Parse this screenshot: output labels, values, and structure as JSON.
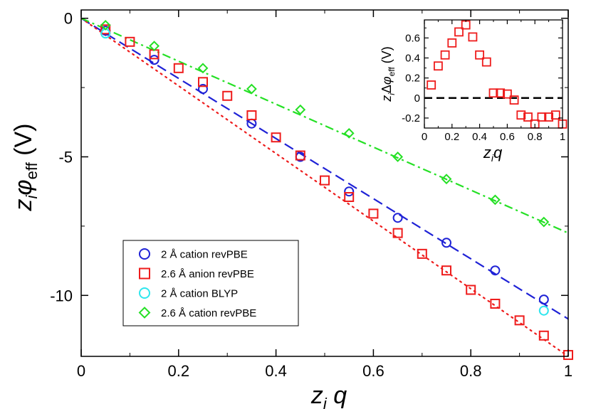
{
  "chart_data": [
    {
      "type": "scatter",
      "panel": "main",
      "xlim": [
        0,
        1
      ],
      "ylim": [
        -12.2,
        0.3
      ],
      "xticks": [
        0,
        0.2,
        0.4,
        0.6,
        0.8,
        1
      ],
      "xtick_labels": [
        "0",
        "0.2",
        "0.4",
        "0.6",
        "0.8",
        "1"
      ],
      "yticks": [
        0,
        -5,
        -10
      ],
      "ytick_labels": [
        "0",
        "-5",
        "-10"
      ],
      "xlabel": {
        "main": "z",
        "sub": "i",
        "tail": " q"
      },
      "ylabel": {
        "main": "z",
        "sub": "i",
        "phi": "φ",
        "phisub": "eff",
        "tail": " (V)"
      },
      "legend_position": "lower-left",
      "series": [
        {
          "name": "2 Å cation revPBE",
          "marker": "circle",
          "color": "#1f22d6",
          "x": [
            0.05,
            0.15,
            0.25,
            0.35,
            0.45,
            0.55,
            0.65,
            0.75,
            0.85,
            0.95
          ],
          "y": [
            -0.45,
            -1.5,
            -2.55,
            -3.8,
            -5.0,
            -6.25,
            -7.2,
            -8.1,
            -9.1,
            -10.15
          ]
        },
        {
          "name": "2.6 Å anion revPBE",
          "marker": "square",
          "color": "#ee1c1c",
          "x": [
            0.05,
            0.1,
            0.15,
            0.2,
            0.25,
            0.3,
            0.35,
            0.4,
            0.45,
            0.5,
            0.55,
            0.6,
            0.65,
            0.7,
            0.75,
            0.8,
            0.85,
            0.9,
            0.95,
            1.0
          ],
          "y": [
            -0.4,
            -0.85,
            -1.3,
            -1.8,
            -2.3,
            -2.8,
            -3.5,
            -4.3,
            -4.95,
            -5.85,
            -6.45,
            -7.05,
            -7.75,
            -8.5,
            -9.1,
            -9.8,
            -10.3,
            -10.9,
            -11.45,
            -12.15
          ]
        },
        {
          "name": "2 Å cation BLYP",
          "marker": "circle",
          "color": "#2ee6ee",
          "x": [
            0.05,
            0.95
          ],
          "y": [
            -0.55,
            -10.55
          ]
        },
        {
          "name": "2.6 Å cation revPBE",
          "marker": "diamond",
          "color": "#25e025",
          "x": [
            0.05,
            0.15,
            0.25,
            0.35,
            0.45,
            0.55,
            0.65,
            0.75,
            0.85,
            0.95
          ],
          "y": [
            -0.25,
            -1.0,
            -1.8,
            -2.55,
            -3.3,
            -4.15,
            -5.0,
            -5.8,
            -6.55,
            -7.35
          ]
        }
      ],
      "fits": [
        {
          "style": "dashed",
          "color": "#1f22d6",
          "x": [
            0,
            1
          ],
          "y": [
            0,
            -10.85
          ]
        },
        {
          "style": "dotted",
          "color": "#ee1c1c",
          "x": [
            0,
            1
          ],
          "y": [
            0,
            -12.2
          ]
        },
        {
          "style": "dashdot",
          "color": "#25e025",
          "x": [
            0,
            1
          ],
          "y": [
            0,
            -7.75
          ]
        }
      ]
    },
    {
      "type": "scatter",
      "panel": "inset",
      "xlim": [
        0,
        1
      ],
      "ylim": [
        -0.3,
        0.78
      ],
      "xticks": [
        0,
        0.2,
        0.4,
        0.6,
        0.8,
        1
      ],
      "xtick_labels": [
        "0",
        "0.2",
        "0.4",
        "0.6",
        "0.8",
        "1"
      ],
      "yticks": [
        -0.2,
        0,
        0.2,
        0.4,
        0.6
      ],
      "ytick_labels": [
        "-0.2",
        "0",
        "0.2",
        "0.4",
        "0.6"
      ],
      "xlabel": {
        "main": "z",
        "sub": "i",
        "tail": "q"
      },
      "ylabel": {
        "main": "z",
        "sub": "i",
        "delta": "Δ",
        "phi": "φ",
        "phisub": "eff",
        "tail": " (V)"
      },
      "reference_line": {
        "y": 0,
        "style": "dashed",
        "color": "#000000"
      },
      "series": [
        {
          "name": "",
          "marker": "square",
          "color": "#ee1c1c",
          "x": [
            0.05,
            0.1,
            0.15,
            0.2,
            0.25,
            0.3,
            0.35,
            0.4,
            0.45,
            0.5,
            0.55,
            0.6,
            0.65,
            0.7,
            0.75,
            0.8,
            0.85,
            0.9,
            0.95,
            1.0
          ],
          "y": [
            0.13,
            0.32,
            0.43,
            0.55,
            0.66,
            0.73,
            0.61,
            0.43,
            0.36,
            0.05,
            0.05,
            0.04,
            -0.02,
            -0.17,
            -0.19,
            -0.26,
            -0.19,
            -0.19,
            -0.17,
            -0.26
          ]
        }
      ]
    }
  ]
}
